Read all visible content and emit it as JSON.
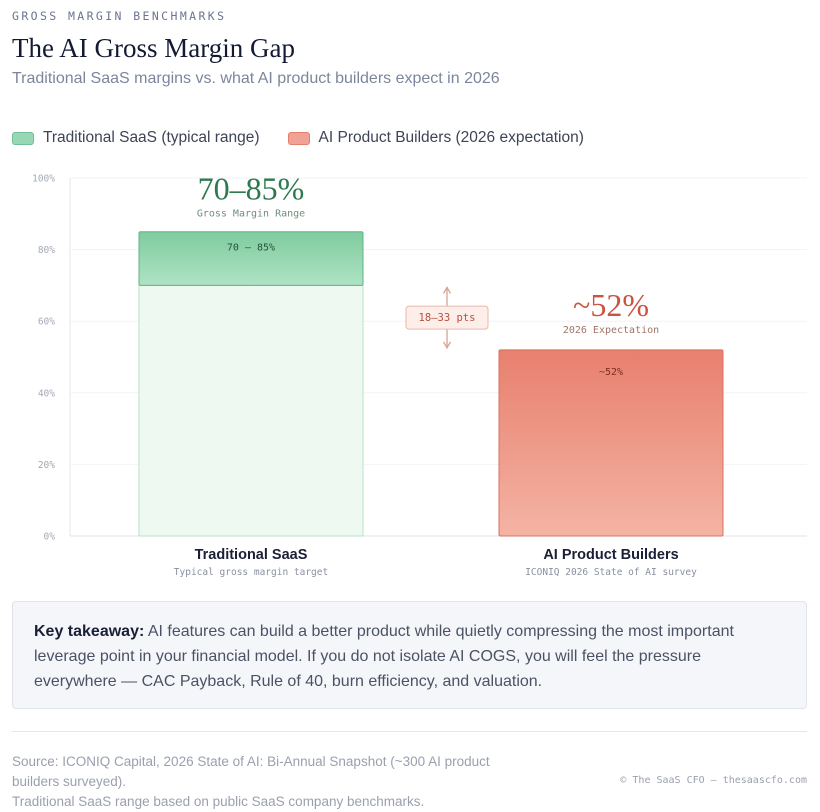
{
  "header": {
    "eyebrow": "GROSS MARGIN BENCHMARKS",
    "title": "The AI Gross Margin Gap",
    "subtitle": "Traditional SaaS margins vs. what AI product builders expect in 2026"
  },
  "legend": [
    {
      "label": "Traditional SaaS (typical range)",
      "color": "#97d7b3"
    },
    {
      "label": "AI Product Builders (2026 expectation)",
      "color": "#f0a394"
    }
  ],
  "chart_data": {
    "type": "bar",
    "ylim": [
      0,
      100
    ],
    "y_ticks": [
      0,
      20,
      40,
      60,
      80,
      100
    ],
    "y_tick_labels": [
      "0%",
      "20%",
      "40%",
      "60%",
      "80%",
      "100%"
    ],
    "grid": true,
    "bars": [
      {
        "category": "Traditional SaaS",
        "sublabel": "Typical gross margin target",
        "range": [
          70,
          85
        ],
        "inner_label": "70 – 85%",
        "big_label": "70–85%",
        "caption": "Gross Margin Range",
        "base_color": "#eef9f2",
        "fill_color": "#8fd2ac",
        "accent_color": "#2d7a4f"
      },
      {
        "category": "AI Product Builders",
        "sublabel": "ICONIQ 2026 State of AI survey",
        "value": 52,
        "inner_label": "~52%",
        "big_label": "~52%",
        "caption": "2026 Expectation",
        "fill_color": "#ec8d7c",
        "accent_color": "#cc5340"
      }
    ],
    "gap_label": "18–33 pts"
  },
  "takeaway": {
    "lead": "Key takeaway:",
    "text": " AI features can build a better product while quietly compressing the most important leverage point in your financial model. If you do not isolate AI COGS, you will feel the pressure everywhere — CAC Payback, Rule of 40, burn efficiency, and valuation."
  },
  "footer": {
    "source_line1": "Source: ICONIQ Capital, 2026 State of AI: Bi-Annual Snapshot (~300 AI product builders surveyed).",
    "source_line2": "Traditional SaaS range based on public SaaS company benchmarks.",
    "credit": "© The SaaS CFO — thesaascfo.com"
  }
}
